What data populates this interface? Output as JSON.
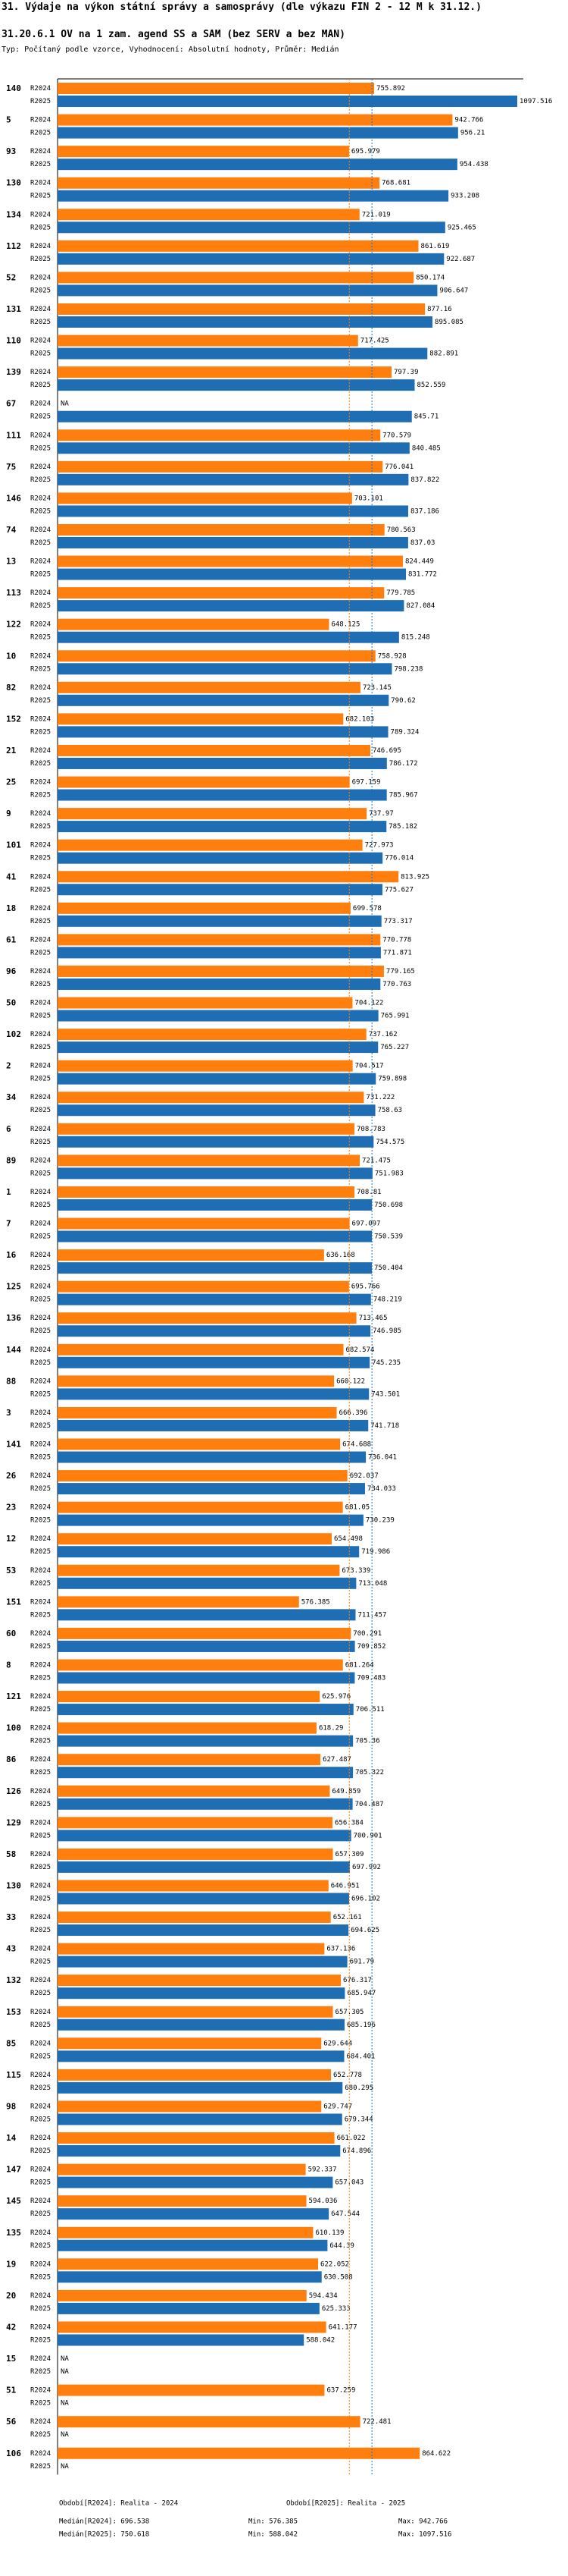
{
  "title": "31. Výdaje na výkon státní správy a samosprávy (dle výkazu FIN 2 - 12 M k 31.12.)",
  "subtitle": "31.20.6.1 OV na 1 zam. agend SS a SAM (bez SERV a bez MAN)",
  "type_line": "Typ: Počítaný podle vzorce, Vyhodnocení: Absolutní hodnoty, Průměr: Medián",
  "colors": {
    "r2024": "#ff7f0e",
    "r2025": "#1f6eb4",
    "median2024": "#ff7f0e",
    "median2025": "#1f6eb4"
  },
  "legend": {
    "period_2024": "Období[R2024]: Realita - 2024",
    "period_2025": "Období[R2025]: Realita - 2025"
  },
  "stats": {
    "median_2024": "Medián[R2024]: 696.538",
    "median_2025": "Medián[R2025]: 750.618",
    "min_2024": "Min: 576.385",
    "min_2025": "Min: 588.042",
    "max_2024": "Max: 942.766",
    "max_2025": "Max: 1097.516"
  },
  "chart_data": {
    "type": "bar",
    "orientation": "horizontal",
    "series_labels": [
      "R2024",
      "R2025"
    ],
    "na_label": "NA",
    "median_2024": 696.538,
    "median_2025": 750.618,
    "groups": [
      {
        "id": "140",
        "r2024": "755.892",
        "r2025": "1097.516"
      },
      {
        "id": "5",
        "r2024": "942.766",
        "r2025": "956.21"
      },
      {
        "id": "93",
        "r2024": "695.979",
        "r2025": "954.438"
      },
      {
        "id": "130",
        "r2024": "768.681",
        "r2025": "933.208"
      },
      {
        "id": "134",
        "r2024": "721.019",
        "r2025": "925.465"
      },
      {
        "id": "112",
        "r2024": "861.619",
        "r2025": "922.687"
      },
      {
        "id": "52",
        "r2024": "850.174",
        "r2025": "906.647"
      },
      {
        "id": "131",
        "r2024": "877.16",
        "r2025": "895.085"
      },
      {
        "id": "110",
        "r2024": "717.425",
        "r2025": "882.891"
      },
      {
        "id": "139",
        "r2024": "797.39",
        "r2025": "852.559"
      },
      {
        "id": "67",
        "r2024": null,
        "r2025": "845.71"
      },
      {
        "id": "111",
        "r2024": "770.579",
        "r2025": "840.485"
      },
      {
        "id": "75",
        "r2024": "776.041",
        "r2025": "837.822"
      },
      {
        "id": "146",
        "r2024": "703.101",
        "r2025": "837.186"
      },
      {
        "id": "74",
        "r2024": "780.563",
        "r2025": "837.03"
      },
      {
        "id": "13",
        "r2024": "824.449",
        "r2025": "831.772"
      },
      {
        "id": "113",
        "r2024": "779.785",
        "r2025": "827.084"
      },
      {
        "id": "122",
        "r2024": "648.125",
        "r2025": "815.248"
      },
      {
        "id": "10",
        "r2024": "758.928",
        "r2025": "798.238"
      },
      {
        "id": "82",
        "r2024": "723.145",
        "r2025": "790.62"
      },
      {
        "id": "152",
        "r2024": "682.103",
        "r2025": "789.324"
      },
      {
        "id": "21",
        "r2024": "746.695",
        "r2025": "786.172"
      },
      {
        "id": "25",
        "r2024": "697.159",
        "r2025": "785.967"
      },
      {
        "id": "9",
        "r2024": "737.97",
        "r2025": "785.182"
      },
      {
        "id": "101",
        "r2024": "727.973",
        "r2025": "776.014"
      },
      {
        "id": "41",
        "r2024": "813.925",
        "r2025": "775.627"
      },
      {
        "id": "18",
        "r2024": "699.578",
        "r2025": "773.317"
      },
      {
        "id": "61",
        "r2024": "770.778",
        "r2025": "771.871"
      },
      {
        "id": "96",
        "r2024": "779.165",
        "r2025": "770.763"
      },
      {
        "id": "50",
        "r2024": "704.122",
        "r2025": "765.991"
      },
      {
        "id": "102",
        "r2024": "737.162",
        "r2025": "765.227"
      },
      {
        "id": "2",
        "r2024": "704.517",
        "r2025": "759.898"
      },
      {
        "id": "34",
        "r2024": "731.222",
        "r2025": "758.63"
      },
      {
        "id": "6",
        "r2024": "708.783",
        "r2025": "754.575"
      },
      {
        "id": "89",
        "r2024": "721.475",
        "r2025": "751.983"
      },
      {
        "id": "1",
        "r2024": "708.81",
        "r2025": "750.698"
      },
      {
        "id": "7",
        "r2024": "697.097",
        "r2025": "750.539"
      },
      {
        "id": "16",
        "r2024": "636.168",
        "r2025": "750.404"
      },
      {
        "id": "125",
        "r2024": "695.766",
        "r2025": "748.219"
      },
      {
        "id": "136",
        "r2024": "713.465",
        "r2025": "746.985"
      },
      {
        "id": "144",
        "r2024": "682.574",
        "r2025": "745.235"
      },
      {
        "id": "88",
        "r2024": "660.122",
        "r2025": "743.501"
      },
      {
        "id": "3",
        "r2024": "666.396",
        "r2025": "741.718"
      },
      {
        "id": "141",
        "r2024": "674.688",
        "r2025": "736.041"
      },
      {
        "id": "26",
        "r2024": "692.037",
        "r2025": "734.033"
      },
      {
        "id": "23",
        "r2024": "681.05",
        "r2025": "730.239"
      },
      {
        "id": "12",
        "r2024": "654.498",
        "r2025": "719.986"
      },
      {
        "id": "53",
        "r2024": "673.339",
        "r2025": "713.048"
      },
      {
        "id": "151",
        "r2024": "576.385",
        "r2025": "711.457"
      },
      {
        "id": "60",
        "r2024": "700.291",
        "r2025": "709.852"
      },
      {
        "id": "8",
        "r2024": "681.264",
        "r2025": "709.483"
      },
      {
        "id": "121",
        "r2024": "625.976",
        "r2025": "706.511"
      },
      {
        "id": "100",
        "r2024": "618.29",
        "r2025": "705.36"
      },
      {
        "id": "86",
        "r2024": "627.487",
        "r2025": "705.322"
      },
      {
        "id": "126",
        "r2024": "649.859",
        "r2025": "704.487"
      },
      {
        "id": "129",
        "r2024": "656.384",
        "r2025": "700.901"
      },
      {
        "id": "58",
        "r2024": "657.309",
        "r2025": "697.992"
      },
      {
        "id": "130",
        "r2024": "646.951",
        "r2025": "696.102"
      },
      {
        "id": "33",
        "r2024": "652.161",
        "r2025": "694.625"
      },
      {
        "id": "43",
        "r2024": "637.136",
        "r2025": "691.79"
      },
      {
        "id": "132",
        "r2024": "676.317",
        "r2025": "685.947"
      },
      {
        "id": "153",
        "r2024": "657.305",
        "r2025": "685.196"
      },
      {
        "id": "85",
        "r2024": "629.644",
        "r2025": "684.401"
      },
      {
        "id": "115",
        "r2024": "652.778",
        "r2025": "680.295"
      },
      {
        "id": "98",
        "r2024": "629.747",
        "r2025": "679.344"
      },
      {
        "id": "14",
        "r2024": "661.022",
        "r2025": "674.896"
      },
      {
        "id": "147",
        "r2024": "592.337",
        "r2025": "657.043"
      },
      {
        "id": "145",
        "r2024": "594.036",
        "r2025": "647.544"
      },
      {
        "id": "135",
        "r2024": "610.139",
        "r2025": "644.39"
      },
      {
        "id": "19",
        "r2024": "622.052",
        "r2025": "630.508"
      },
      {
        "id": "20",
        "r2024": "594.434",
        "r2025": "625.333"
      },
      {
        "id": "42",
        "r2024": "641.177",
        "r2025": "588.042"
      },
      {
        "id": "15",
        "r2024": null,
        "r2025": null
      },
      {
        "id": "51",
        "r2024": "637.259",
        "r2025": null
      },
      {
        "id": "56",
        "r2024": "722.481",
        "r2025": null
      },
      {
        "id": "106",
        "r2024": "864.622",
        "r2025": null
      }
    ]
  }
}
